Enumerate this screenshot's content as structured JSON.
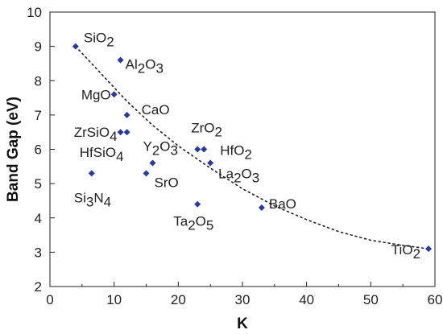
{
  "chart_data": {
    "type": "scatter",
    "title": "",
    "xlabel": "K",
    "ylabel": "Band Gap (eV)",
    "xlim": [
      0,
      60
    ],
    "ylim": [
      2,
      10
    ],
    "xticks": [
      0,
      10,
      20,
      30,
      40,
      50,
      60
    ],
    "yticks": [
      2,
      3,
      4,
      5,
      6,
      7,
      8,
      9,
      10
    ],
    "grid": false,
    "marker_color": "#2b3a9a",
    "trend_line": {
      "style": "dotted",
      "color": "#222222",
      "points": [
        [
          4,
          9.0
        ],
        [
          8,
          8.2
        ],
        [
          12,
          7.4
        ],
        [
          16,
          6.7
        ],
        [
          20,
          6.1
        ],
        [
          25,
          5.45
        ],
        [
          30,
          4.85
        ],
        [
          35,
          4.35
        ],
        [
          40,
          3.95
        ],
        [
          45,
          3.6
        ],
        [
          50,
          3.35
        ],
        [
          55,
          3.2
        ],
        [
          59,
          3.1
        ]
      ]
    },
    "points": [
      {
        "name": "SiO2",
        "label": [
          [
            "SiO",
            "n"
          ],
          [
            "2",
            "sub"
          ]
        ],
        "x": 4,
        "y": 9.0
      },
      {
        "name": "Al2O3",
        "label": [
          [
            "Al",
            "n"
          ],
          [
            "2",
            "sub"
          ],
          [
            "O",
            "n"
          ],
          [
            "3",
            "sub"
          ]
        ],
        "x": 11,
        "y": 8.6
      },
      {
        "name": "MgO",
        "label": [
          [
            "MgO",
            "n"
          ]
        ],
        "x": 10,
        "y": 7.6
      },
      {
        "name": "CaO",
        "label": [
          [
            "CaO",
            "n"
          ]
        ],
        "x": 12,
        "y": 7.0
      },
      {
        "name": "ZrSiO4",
        "label": [
          [
            "ZrSiO",
            "n"
          ],
          [
            "4",
            "sub"
          ]
        ],
        "x": 11,
        "y": 6.5
      },
      {
        "name": "HfSiO4",
        "label": [
          [
            "HfSiO",
            "n"
          ],
          [
            "4",
            "sub"
          ]
        ],
        "x": 12,
        "y": 6.5
      },
      {
        "name": "Y2O3",
        "label": [
          [
            "Y",
            "n"
          ],
          [
            "2",
            "sub"
          ],
          [
            "O",
            "n"
          ],
          [
            "3",
            "sub"
          ]
        ],
        "x": 16,
        "y": 5.6
      },
      {
        "name": "SrO",
        "label": [
          [
            "SrO",
            "n"
          ]
        ],
        "x": 15,
        "y": 5.3
      },
      {
        "name": "ZrO2",
        "label": [
          [
            "ZrO",
            "n"
          ],
          [
            "2",
            "sub"
          ]
        ],
        "x": 23,
        "y": 6.0
      },
      {
        "name": "HfO2",
        "label": [
          [
            "HfO",
            "n"
          ],
          [
            "2",
            "sub"
          ]
        ],
        "x": 24,
        "y": 6.0
      },
      {
        "name": "La2O3",
        "label": [
          [
            "La",
            "n"
          ],
          [
            "2",
            "sub"
          ],
          [
            "O",
            "n"
          ],
          [
            "3",
            "sub"
          ]
        ],
        "x": 25,
        "y": 5.6
      },
      {
        "name": "Si3N4",
        "label": [
          [
            "Si",
            "n"
          ],
          [
            "3",
            "sub"
          ],
          [
            "N",
            "n"
          ],
          [
            "4",
            "sub"
          ]
        ],
        "x": 6.5,
        "y": 5.3
      },
      {
        "name": "Ta2O5",
        "label": [
          [
            "Ta",
            "n"
          ],
          [
            "2",
            "sub"
          ],
          [
            "O",
            "n"
          ],
          [
            "5",
            "sub"
          ]
        ],
        "x": 23,
        "y": 4.4
      },
      {
        "name": "BaO",
        "label": [
          [
            "BaO",
            "n"
          ]
        ],
        "x": 33,
        "y": 4.3
      },
      {
        "name": "TiO2",
        "label": [
          [
            "TiO",
            "n"
          ],
          [
            "2",
            "sub"
          ]
        ],
        "x": 59,
        "y": 3.1
      }
    ]
  }
}
